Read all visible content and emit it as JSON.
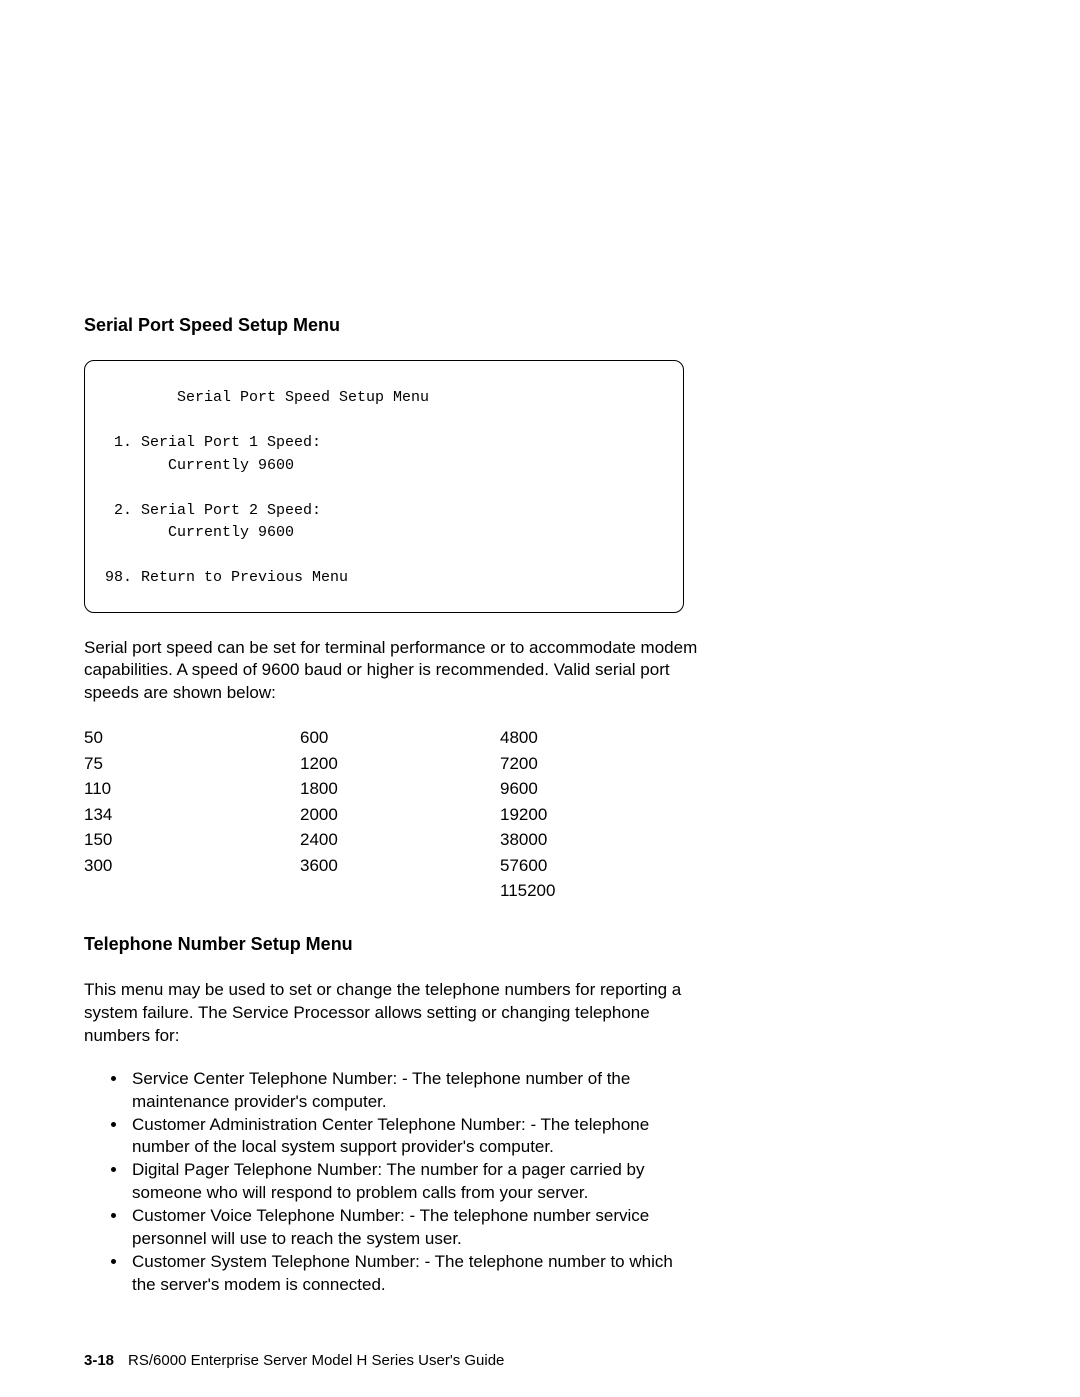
{
  "section1": {
    "title": "Serial Port Speed Setup Menu",
    "menu_text": "        Serial Port Speed Setup Menu\n\n 1. Serial Port 1 Speed:\n       Currently 9600\n\n 2. Serial Port 2 Speed:\n       Currently 9600\n\n98. Return to Previous Menu",
    "paragraph": "Serial port speed can be set for terminal performance or to accommodate modem capabilities.  A speed of 9600 baud or higher is recommended.  Valid serial port speeds are shown below:",
    "speeds_col1": [
      "50",
      "75",
      "110",
      "134",
      "150",
      "300"
    ],
    "speeds_col2": [
      "600",
      "1200",
      "1800",
      "2000",
      "2400",
      "3600"
    ],
    "speeds_col3": [
      "4800",
      "7200",
      "9600",
      "19200",
      "38000",
      "57600",
      "115200"
    ]
  },
  "section2": {
    "title": "Telephone Number Setup Menu",
    "paragraph": "This menu may be used to set or change the telephone numbers for reporting a system failure.  The Service Processor allows setting or changing telephone numbers for:",
    "bullets": [
      "Service Center Telephone Number: - The telephone number of the maintenance provider's computer.",
      "Customer Administration Center Telephone Number: - The telephone number of the local system support provider's computer.",
      "Digital Pager Telephone Number: The number for a pager carried by someone who will respond to problem calls from your server.",
      "Customer Voice Telephone Number: - The telephone number service personnel will use to reach the system user.",
      "Customer System Telephone Number: - The telephone number to which the server's modem is connected."
    ]
  },
  "footer": {
    "page_number": "3-18",
    "doc_title": "RS/6000 Enterprise Server Model H Series User's Guide"
  }
}
